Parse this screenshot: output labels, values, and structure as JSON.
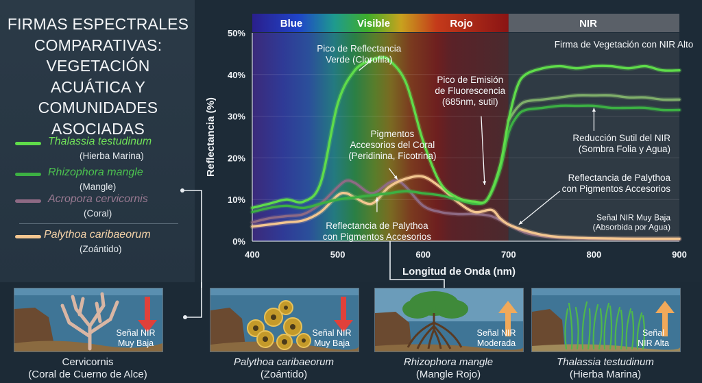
{
  "title": "FIRMAS ESPECTRALES COMPARATIVAS: VEGETACIÓN ACUÁTICA Y COMUNIDADES ASOCIADAS",
  "legend": [
    {
      "name": "Thalassia testudinum",
      "common": "(Hierba Marina)",
      "color": "#5fdc4a"
    },
    {
      "name": "Rhizophora mangle",
      "common": "(Mangle)",
      "color": "#3cb043"
    },
    {
      "name": "Acropora cervicornis",
      "common": "(Coral)",
      "color": "#8e6a84"
    },
    {
      "name": "Palythoa caribaeorum",
      "common": "(Zoántido)",
      "color": "#f3c690"
    }
  ],
  "chart_data": {
    "type": "line",
    "xlabel": "Longitud de Onda (nm)",
    "ylabel": "Reflectancia (%)",
    "xlim": [
      400,
      900
    ],
    "ylim": [
      0,
      50
    ],
    "xticks": [
      "400",
      "500",
      "600",
      "700",
      "800",
      "900"
    ],
    "yticks": [
      "0%",
      "10%",
      "20%",
      "30%",
      "40%",
      "50%"
    ],
    "bands": [
      "Blue",
      "Visible",
      "Rojo",
      "NIR"
    ],
    "series": [
      {
        "name": "Thalassia testudinum",
        "color": "#5fdc4a",
        "x": [
          400,
          420,
          440,
          460,
          480,
          500,
          520,
          540,
          550,
          560,
          580,
          600,
          620,
          640,
          660,
          675,
          690,
          700,
          710,
          720,
          740,
          760,
          780,
          800,
          820,
          840,
          860,
          880,
          900
        ],
        "y": [
          8,
          9,
          10,
          9.5,
          14,
          33,
          41,
          43.5,
          44,
          43.5,
          38,
          24,
          14,
          10.5,
          9.5,
          10,
          18,
          29,
          37,
          40,
          41.5,
          42,
          41.5,
          42,
          42,
          41.5,
          42,
          41,
          41
        ]
      },
      {
        "name": "Rhizophora mangle",
        "color": "#3cb043",
        "x": [
          400,
          420,
          440,
          460,
          480,
          500,
          520,
          540,
          560,
          580,
          600,
          620,
          640,
          660,
          675,
          690,
          700,
          710,
          720,
          740,
          760,
          780,
          800,
          820,
          840,
          860,
          880,
          900
        ],
        "y": [
          7,
          8,
          8.5,
          8,
          9,
          10,
          10.5,
          11,
          11.5,
          12,
          11.5,
          11,
          10,
          9,
          10,
          17,
          26,
          30,
          31.5,
          32,
          32.5,
          32.5,
          32.5,
          32,
          32,
          32,
          31.5,
          31.5
        ]
      },
      {
        "name": "Rhizophora mangle (sombra)",
        "color": "#7fae6a",
        "x": [
          700,
          710,
          720,
          740,
          760,
          780,
          800,
          820,
          840,
          860,
          880,
          900
        ],
        "y": [
          29,
          32,
          33.5,
          34,
          34.5,
          35,
          35,
          35,
          34.5,
          34.5,
          34,
          34
        ]
      },
      {
        "name": "Acropora cervicornis",
        "color": "#8e6a84",
        "x": [
          400,
          420,
          440,
          460,
          480,
          500,
          510,
          520,
          540,
          560,
          570,
          580,
          600,
          620,
          640,
          660,
          680,
          700,
          720,
          740,
          760,
          800,
          850,
          900
        ],
        "y": [
          4.5,
          5.5,
          6,
          6.5,
          9,
          13,
          14.5,
          14,
          11.5,
          14,
          14.5,
          13,
          8.5,
          7,
          6.5,
          6.5,
          6,
          4,
          2,
          1.2,
          0.8,
          0.6,
          0.5,
          0.5
        ]
      },
      {
        "name": "Palythoa caribaeorum",
        "color": "#f3c690",
        "x": [
          400,
          420,
          440,
          460,
          480,
          500,
          510,
          520,
          540,
          560,
          580,
          600,
          620,
          640,
          660,
          680,
          690,
          700,
          720,
          740,
          760,
          800,
          850,
          900
        ],
        "y": [
          3.5,
          4,
          4.5,
          5,
          7,
          11,
          11.5,
          10.5,
          9,
          13,
          15,
          15.5,
          13,
          9.5,
          7,
          7.5,
          5.5,
          4,
          2.5,
          1.5,
          1,
          0.7,
          0.6,
          0.6
        ]
      }
    ],
    "annotations": [
      {
        "text": "Pico de Reflectancia\nVerde (Clorofila)",
        "x": 525,
        "y": 45.5
      },
      {
        "text": "Firma de Vegetación con NIR Alto",
        "x": 835,
        "y": 46.5
      },
      {
        "text": "Pico de Emisión\nde Fluorescencia\n(685nm, sutil)",
        "x": 655,
        "y": 38
      },
      {
        "text": "Pigmentos\nAccesorios del Coral\n(Peridinina, Ficotrina)",
        "x": 564,
        "y": 25
      },
      {
        "text": "Reducción Sutil del NIR\n(Sombra Folia y Agua)",
        "x": 840,
        "y": 24
      },
      {
        "text": "Reflectancia de Palythoa\ncon Pigmentos Accesorios",
        "x": 840,
        "y": 14.5
      },
      {
        "text": "Señal NIR Muy Baja\n(Absorbida por Agua)",
        "x": 845,
        "y": 5
      },
      {
        "text": "Reflectancia de Palythoa\ncon Pigmentos Accesorios",
        "x": 546,
        "y": 3
      }
    ]
  },
  "scenes": [
    {
      "nir_line1": "Señal NIR",
      "nir_line2": "Muy Baja",
      "caption1": "Cervicornis",
      "caption2": "(Coral de Cuerno de Alce)",
      "italic": false
    },
    {
      "nir_line1": "Señal NIR",
      "nir_line2": "Muy Baja",
      "caption1": "Palythoa caribaeorum",
      "caption2": "(Zoántido)",
      "italic": true
    },
    {
      "nir_line1": "Señal NIR",
      "nir_line2": "Moderada",
      "caption1": "Rhizophora mangle",
      "caption2": "(Mangle Rojo)",
      "italic": true
    },
    {
      "nir_line1": "Señal",
      "nir_line2": "NIR Alta",
      "caption1": "Thalassia testudinum",
      "caption2": "(Hierba Marina)",
      "italic": true
    }
  ],
  "colors": {
    "background": "#1c2a36",
    "panel": "#2b3a47",
    "water": "#3d6e8e",
    "arrow_low": "#e0413a",
    "arrow_high": "#f0a95a"
  }
}
